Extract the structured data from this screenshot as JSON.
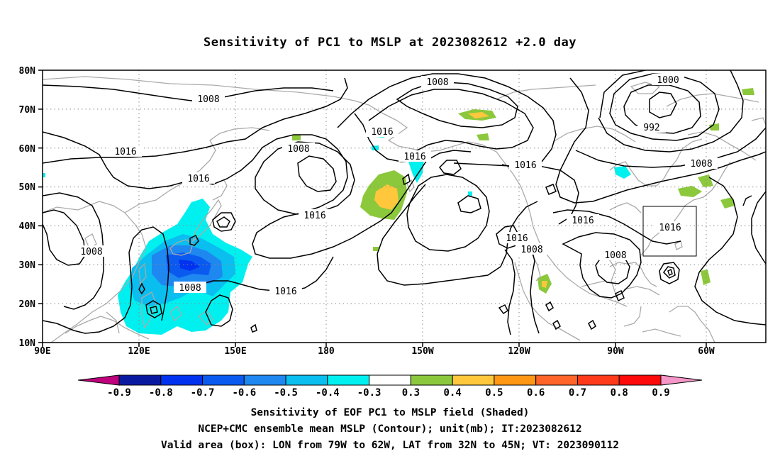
{
  "title": "Sensitivity of PC1 to MSLP at 2023082612 +2.0 day",
  "map": {
    "lat_labels": [
      "80N",
      "70N",
      "60N",
      "50N",
      "40N",
      "30N",
      "20N",
      "10N"
    ],
    "lon_labels": [
      "90E",
      "120E",
      "150E",
      "180",
      "150W",
      "120W",
      "90W",
      "60W"
    ],
    "contour_labels": [
      "1008",
      "1008",
      "1000",
      "992",
      "1016",
      "1016",
      "1008",
      "1016",
      "1016",
      "1016",
      "1008",
      "1016",
      "1016",
      "1016",
      "1008",
      "1008",
      "1016",
      "1008",
      "1016"
    ],
    "valid_box": {
      "lon_range": [
        "79W",
        "62W"
      ],
      "lat_range": [
        "32N",
        "45N"
      ]
    }
  },
  "colorbar": {
    "labels": [
      "-0.9",
      "-0.8",
      "-0.7",
      "-0.6",
      "-0.5",
      "-0.4",
      "-0.3",
      "0.3",
      "0.4",
      "0.5",
      "0.6",
      "0.7",
      "0.8",
      "0.9"
    ],
    "colors": [
      "#c0007c",
      "#0a1aa0",
      "#0032f0",
      "#0a5af0",
      "#1e87f0",
      "#0abeef",
      "#00f0f0",
      "#ffffff",
      "#8cc83c",
      "#ffc83c",
      "#ff9614",
      "#ff6428",
      "#ff3a1a",
      "#ff0a0a",
      "#f596c8"
    ]
  },
  "captions": [
    "Sensitivity of EOF PC1 to MSLP field (Shaded)",
    "NCEP+CMC ensemble mean MSLP (Contour); unit(mb); IT:2023082612",
    "Valid area (box): LON from 79W to 62W, LAT from 32N to 45N; VT: 2023090112"
  ]
}
